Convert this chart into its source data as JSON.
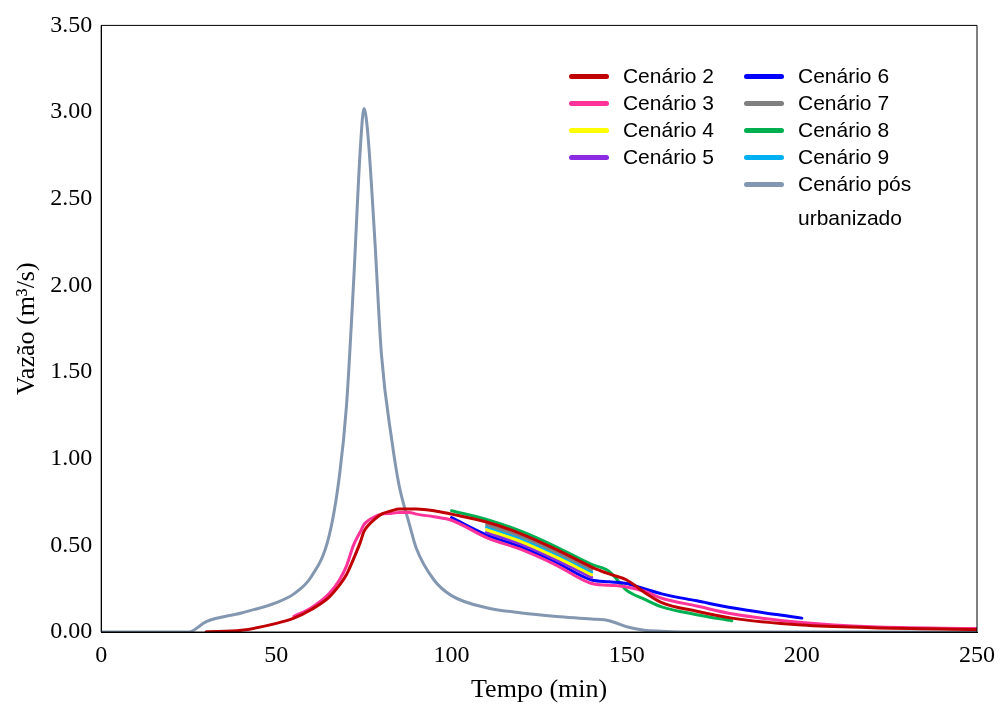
{
  "chart_data": {
    "type": "line",
    "xlabel": "Tempo (min)",
    "ylabel": "Vazão (m³/s)",
    "x": [
      0,
      20,
      25,
      30,
      40,
      50,
      55,
      60,
      65,
      68,
      70,
      72,
      74,
      75,
      76,
      78,
      80,
      83,
      85,
      88,
      90,
      95,
      100,
      110,
      120,
      130,
      140,
      145,
      150,
      155,
      160,
      170,
      180,
      200,
      220,
      250
    ],
    "series": [
      {
        "name": "Cenário 2",
        "color": "#c00000",
        "values": [
          null,
          null,
          null,
          0.002,
          0.01,
          0.05,
          0.08,
          0.13,
          0.2,
          0.27,
          0.33,
          0.42,
          0.52,
          0.58,
          0.61,
          0.65,
          0.68,
          0.7,
          0.71,
          0.71,
          0.71,
          0.7,
          0.68,
          0.635,
          0.565,
          0.475,
          0.375,
          0.335,
          0.3,
          0.23,
          0.17,
          0.12,
          0.08,
          0.04,
          0.025,
          0.015
        ]
      },
      {
        "name": "Cenário 3",
        "color": "#ff3399",
        "values": [
          null,
          null,
          null,
          null,
          null,
          null,
          0.09,
          0.14,
          0.22,
          0.3,
          0.38,
          0.5,
          0.58,
          0.62,
          0.64,
          0.665,
          0.68,
          0.685,
          0.69,
          0.69,
          0.68,
          0.665,
          0.645,
          0.545,
          0.475,
          0.385,
          0.28,
          0.27,
          0.26,
          0.235,
          0.195,
          0.15,
          0.105,
          0.055,
          0.03,
          0.02
        ]
      },
      {
        "name": "Cenário 4",
        "color": "#ffff00",
        "values": [
          null,
          null,
          null,
          null,
          null,
          null,
          null,
          null,
          null,
          null,
          null,
          null,
          null,
          null,
          null,
          null,
          null,
          null,
          null,
          null,
          null,
          null,
          null,
          0.59,
          0.52,
          0.43,
          0.33,
          null,
          null,
          null,
          null,
          null,
          null,
          null,
          null,
          null
        ]
      },
      {
        "name": "Cenário 5",
        "color": "#8a2be2",
        "values": [
          null,
          null,
          null,
          null,
          null,
          null,
          null,
          null,
          null,
          null,
          null,
          null,
          null,
          null,
          null,
          null,
          null,
          null,
          null,
          null,
          null,
          null,
          null,
          0.575,
          0.505,
          0.415,
          0.315,
          null,
          null,
          null,
          null,
          null,
          null,
          null,
          null,
          null
        ]
      },
      {
        "name": "Cenário 6",
        "color": "#0000ff",
        "values": [
          null,
          null,
          null,
          null,
          null,
          null,
          null,
          null,
          null,
          null,
          null,
          null,
          null,
          null,
          null,
          null,
          null,
          null,
          null,
          null,
          null,
          null,
          0.66,
          0.56,
          0.49,
          0.4,
          0.3,
          0.29,
          0.28,
          0.25,
          0.22,
          0.18,
          0.14,
          0.08,
          null,
          null
        ]
      },
      {
        "name": "Cenário 7",
        "color": "#808080",
        "values": [
          null,
          null,
          null,
          null,
          null,
          null,
          null,
          null,
          null,
          null,
          null,
          null,
          null,
          null,
          null,
          null,
          null,
          null,
          null,
          null,
          null,
          null,
          null,
          0.62,
          0.55,
          0.46,
          0.36,
          null,
          null,
          null,
          null,
          null,
          null,
          null,
          null,
          null
        ]
      },
      {
        "name": "Cenário 8",
        "color": "#00b050",
        "values": [
          null,
          null,
          null,
          null,
          null,
          null,
          null,
          null,
          null,
          null,
          null,
          null,
          null,
          null,
          null,
          null,
          null,
          null,
          null,
          null,
          null,
          null,
          0.7,
          0.65,
          0.58,
          0.49,
          0.39,
          0.35,
          0.24,
          0.19,
          0.145,
          0.1,
          0.065,
          null,
          null,
          null
        ]
      },
      {
        "name": "Cenário 9",
        "color": "#00b0f0",
        "values": [
          null,
          null,
          null,
          null,
          null,
          null,
          null,
          null,
          null,
          null,
          null,
          null,
          null,
          null,
          null,
          null,
          null,
          null,
          null,
          null,
          null,
          null,
          null,
          0.605,
          0.535,
          0.445,
          0.345,
          null,
          null,
          null,
          null,
          null,
          null,
          null,
          null,
          null
        ]
      },
      {
        "name": "Cenário pós urbanizado",
        "color": "#8497b0",
        "values": [
          0,
          0,
          0,
          0.06,
          0.11,
          0.17,
          0.22,
          0.32,
          0.55,
          0.9,
          1.3,
          2.0,
          2.8,
          3.02,
          2.9,
          2.3,
          1.6,
          1.1,
          0.85,
          0.62,
          0.48,
          0.3,
          0.21,
          0.14,
          0.11,
          0.09,
          0.075,
          0.065,
          0.03,
          0.01,
          0.005,
          0,
          0,
          0,
          0,
          0
        ]
      }
    ],
    "xlim": [
      0,
      250
    ],
    "xticks": [
      0,
      50,
      100,
      150,
      200,
      250
    ],
    "ylim": [
      0,
      3.5
    ],
    "yticks": [
      {
        "value": 0,
        "label": "0.00"
      },
      {
        "value": 0.5,
        "label": "0.50"
      },
      {
        "value": 1,
        "label": "1.00"
      },
      {
        "value": 1.5,
        "label": "1.50"
      },
      {
        "value": 2,
        "label": "2.00"
      },
      {
        "value": 2.5,
        "label": "2.50"
      },
      {
        "value": 3,
        "label": "3.00"
      },
      {
        "value": 3.5,
        "label": "3.50"
      }
    ],
    "grid": false,
    "legend": "top right",
    "marker": "none",
    "line_style": "solid"
  }
}
